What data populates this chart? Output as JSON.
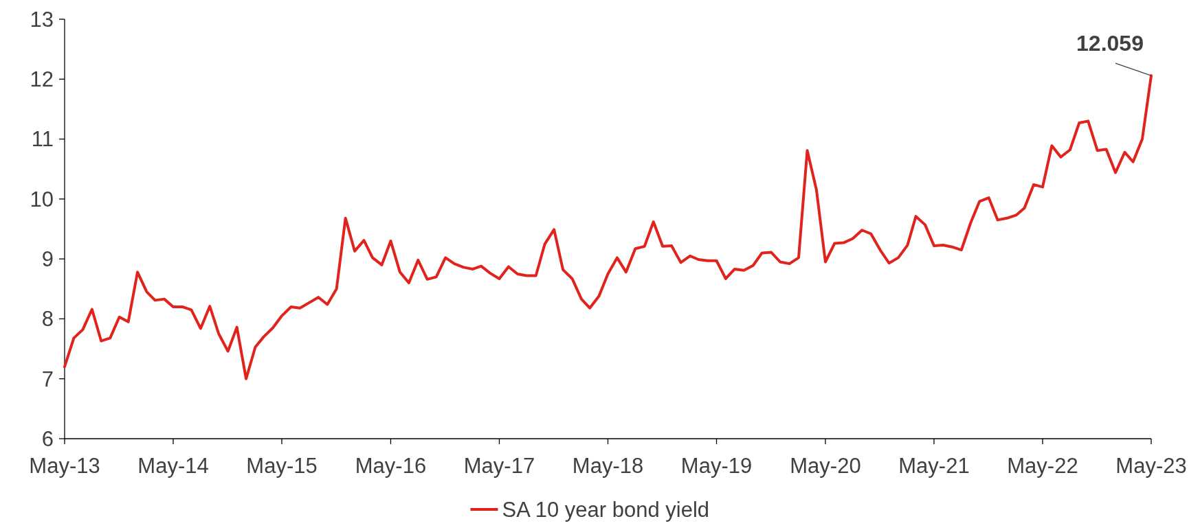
{
  "chart_data": {
    "type": "line",
    "x": [
      "2013-05",
      "2013-06",
      "2013-07",
      "2013-08",
      "2013-09",
      "2013-10",
      "2013-11",
      "2013-12",
      "2014-01",
      "2014-02",
      "2014-03",
      "2014-04",
      "2014-05",
      "2014-06",
      "2014-07",
      "2014-08",
      "2014-09",
      "2014-10",
      "2014-11",
      "2014-12",
      "2015-01",
      "2015-02",
      "2015-03",
      "2015-04",
      "2015-05",
      "2015-06",
      "2015-07",
      "2015-08",
      "2015-09",
      "2015-10",
      "2015-11",
      "2015-12",
      "2016-01",
      "2016-02",
      "2016-03",
      "2016-04",
      "2016-05",
      "2016-06",
      "2016-07",
      "2016-08",
      "2016-09",
      "2016-10",
      "2016-11",
      "2016-12",
      "2017-01",
      "2017-02",
      "2017-03",
      "2017-04",
      "2017-05",
      "2017-06",
      "2017-07",
      "2017-08",
      "2017-09",
      "2017-10",
      "2017-11",
      "2017-12",
      "2018-01",
      "2018-02",
      "2018-03",
      "2018-04",
      "2018-05",
      "2018-06",
      "2018-07",
      "2018-08",
      "2018-09",
      "2018-10",
      "2018-11",
      "2018-12",
      "2019-01",
      "2019-02",
      "2019-03",
      "2019-04",
      "2019-05",
      "2019-06",
      "2019-07",
      "2019-08",
      "2019-09",
      "2019-10",
      "2019-11",
      "2019-12",
      "2020-01",
      "2020-02",
      "2020-03",
      "2020-04",
      "2020-05",
      "2020-06",
      "2020-07",
      "2020-08",
      "2020-09",
      "2020-10",
      "2020-11",
      "2020-12",
      "2021-01",
      "2021-02",
      "2021-03",
      "2021-04",
      "2021-05",
      "2021-06",
      "2021-07",
      "2021-08",
      "2021-09",
      "2021-10",
      "2021-11",
      "2021-12",
      "2022-01",
      "2022-02",
      "2022-03",
      "2022-04",
      "2022-05",
      "2022-06",
      "2022-07",
      "2022-08",
      "2022-09",
      "2022-10",
      "2022-11",
      "2022-12",
      "2023-01",
      "2023-02",
      "2023-03",
      "2023-04",
      "2023-05"
    ],
    "series": [
      {
        "name": "SA 10 year bond yield",
        "color": "#e0231c",
        "values": [
          7.2,
          7.68,
          7.82,
          8.16,
          7.63,
          7.68,
          8.03,
          7.95,
          8.78,
          8.45,
          8.31,
          8.33,
          8.2,
          8.2,
          8.15,
          7.84,
          8.21,
          7.75,
          7.46,
          7.86,
          7.0,
          7.53,
          7.7,
          7.85,
          8.05,
          8.2,
          8.18,
          8.27,
          8.36,
          8.24,
          8.5,
          9.68,
          9.13,
          9.31,
          9.02,
          8.9,
          9.3,
          8.78,
          8.6,
          8.98,
          8.66,
          8.7,
          9.02,
          8.92,
          8.86,
          8.83,
          8.88,
          8.76,
          8.67,
          8.87,
          8.75,
          8.72,
          8.72,
          9.25,
          9.49,
          8.82,
          8.67,
          8.33,
          8.18,
          8.38,
          8.75,
          9.02,
          8.78,
          9.17,
          9.21,
          9.62,
          9.21,
          9.22,
          8.94,
          9.05,
          8.99,
          8.97,
          8.97,
          8.67,
          8.83,
          8.81,
          8.89,
          9.1,
          9.11,
          8.95,
          8.92,
          9.02,
          10.81,
          10.15,
          8.95,
          9.26,
          9.27,
          9.34,
          9.48,
          9.42,
          9.15,
          8.93,
          9.02,
          9.23,
          9.71,
          9.57,
          9.22,
          9.23,
          9.2,
          9.15,
          9.6,
          9.96,
          10.02,
          9.65,
          9.68,
          9.73,
          9.85,
          10.24,
          10.2,
          10.89,
          10.7,
          10.82,
          11.27,
          11.3,
          10.81,
          10.83,
          10.44,
          10.78,
          10.62,
          11.0,
          12.059
        ]
      }
    ],
    "xlim": [
      "2013-05",
      "2023-05"
    ],
    "xticks": [
      {
        "value": "2013-05",
        "label": "May-13"
      },
      {
        "value": "2014-05",
        "label": "May-14"
      },
      {
        "value": "2015-05",
        "label": "May-15"
      },
      {
        "value": "2016-05",
        "label": "May-16"
      },
      {
        "value": "2017-05",
        "label": "May-17"
      },
      {
        "value": "2018-05",
        "label": "May-18"
      },
      {
        "value": "2019-05",
        "label": "May-19"
      },
      {
        "value": "2020-05",
        "label": "May-20"
      },
      {
        "value": "2021-05",
        "label": "May-21"
      },
      {
        "value": "2022-05",
        "label": "May-22"
      },
      {
        "value": "2023-05",
        "label": "May-23"
      }
    ],
    "ylim": [
      6,
      13
    ],
    "yticks": [
      6,
      7,
      8,
      9,
      10,
      11,
      12,
      13
    ],
    "annotations": [
      {
        "text": "12.059",
        "x": "2023-05",
        "y": 12.059
      }
    ],
    "grid": false,
    "legend": "bottom",
    "line_style": "solid"
  }
}
